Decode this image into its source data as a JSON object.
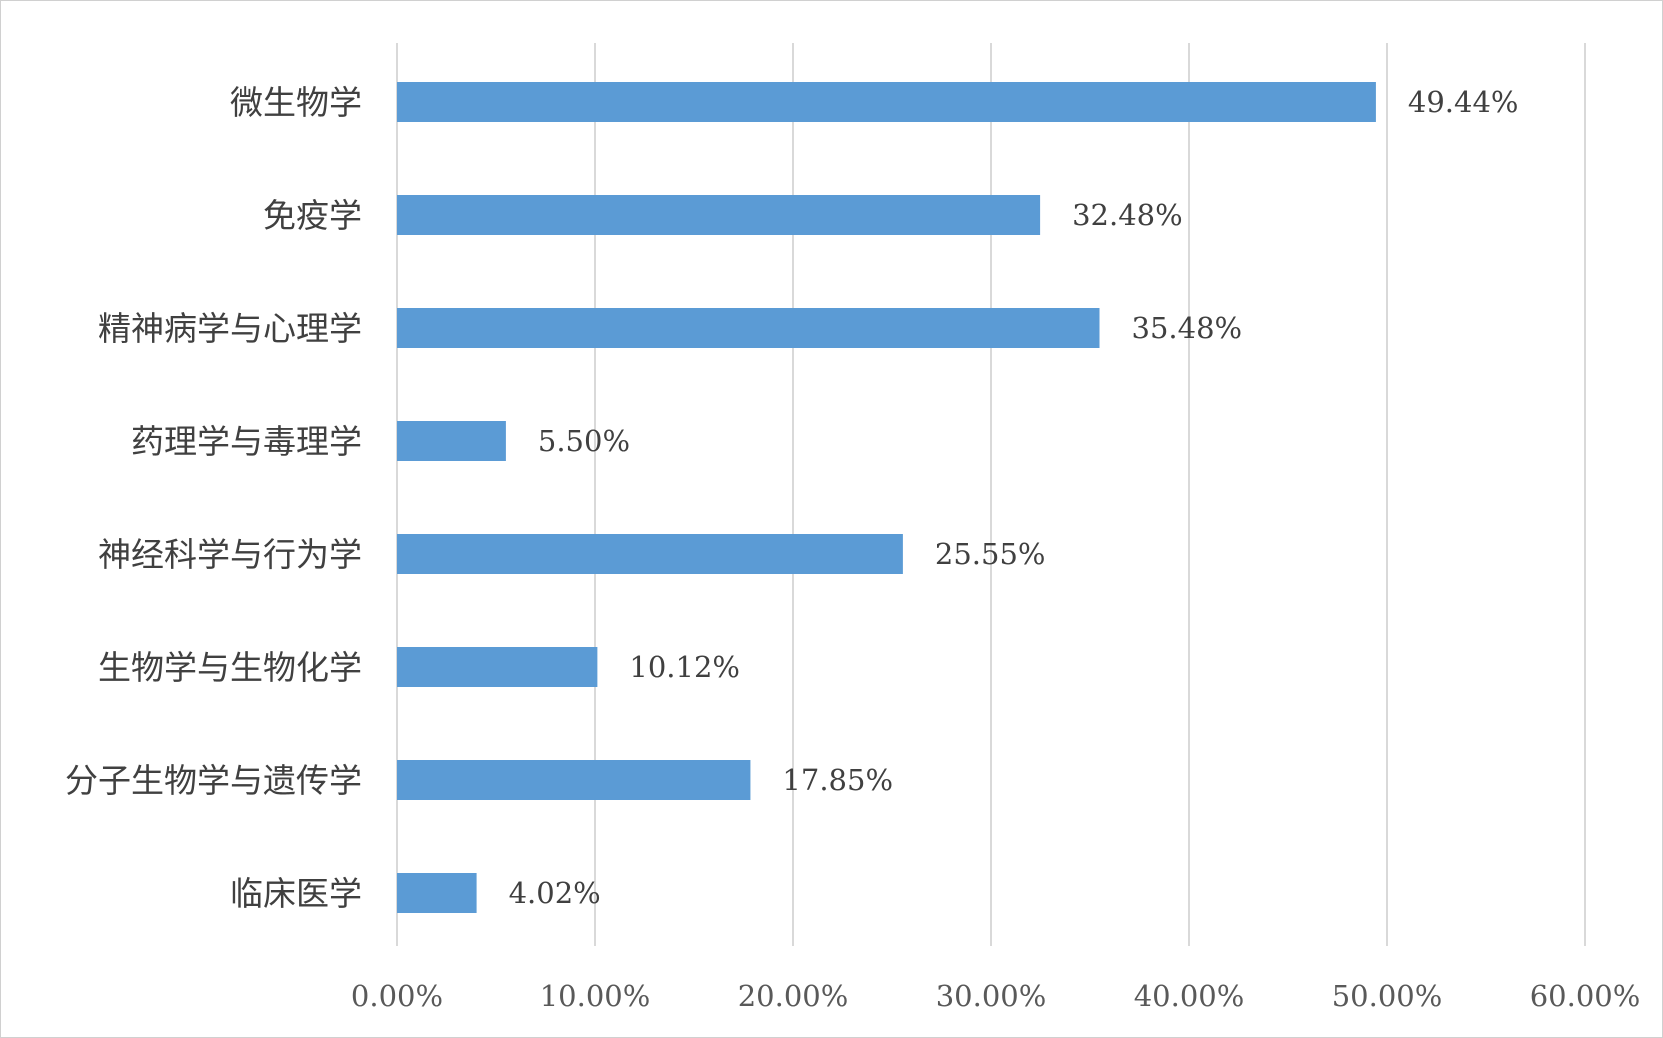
{
  "chart_data": {
    "type": "bar",
    "orientation": "horizontal",
    "title": "",
    "xlabel": "",
    "ylabel": "",
    "categories": [
      "微生物学",
      "免疫学",
      "精神病学与心理学",
      "药理学与毒理学",
      "神经科学与行为学",
      "生物学与生物化学",
      "分子生物学与遗传学",
      "临床医学"
    ],
    "values": [
      49.44,
      32.48,
      35.48,
      5.5,
      25.55,
      10.12,
      17.85,
      4.02
    ],
    "data_labels": [
      "49.44%",
      "32.48%",
      "35.48%",
      "5.50%",
      "25.55%",
      "10.12%",
      "17.85%",
      "4.02%"
    ],
    "xlim": [
      0,
      60
    ],
    "x_ticks": [
      0,
      10,
      20,
      30,
      40,
      50,
      60
    ],
    "x_tick_labels": [
      "0.00%",
      "10.00%",
      "20.00%",
      "30.00%",
      "40.00%",
      "50.00%",
      "60.00%"
    ],
    "grid": "vertical",
    "legend": "none",
    "bar_color": "#5b9bd5"
  }
}
